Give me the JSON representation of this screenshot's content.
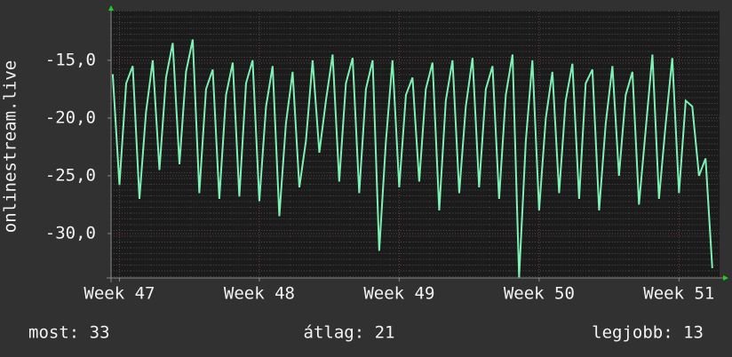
{
  "chart_data": {
    "type": "line",
    "ylabel": "onlinestream.live",
    "color": "#7ff0b4",
    "grid": true,
    "xlim": [
      46.94,
      51.29
    ],
    "ylim": [
      -33.85,
      -10.7
    ],
    "xticks": [
      {
        "value": 47,
        "label": "Week 47"
      },
      {
        "value": 48,
        "label": "Week 48"
      },
      {
        "value": 49,
        "label": "Week 49"
      },
      {
        "value": 50,
        "label": "Week 50"
      },
      {
        "value": 51,
        "label": "Week 51"
      }
    ],
    "yticks": [
      {
        "value": -30,
        "label": "-30,0"
      },
      {
        "value": -25,
        "label": "-25,0"
      },
      {
        "value": -20,
        "label": "-20,0"
      },
      {
        "value": -15,
        "label": "-15,0"
      }
    ],
    "x": [
      46.952,
      47.0,
      47.048,
      47.095,
      47.143,
      47.19,
      47.238,
      47.286,
      47.333,
      47.381,
      47.429,
      47.476,
      47.524,
      47.571,
      47.619,
      47.667,
      47.714,
      47.762,
      47.81,
      47.857,
      47.905,
      47.952,
      48.0,
      48.048,
      48.095,
      48.143,
      48.19,
      48.238,
      48.286,
      48.333,
      48.381,
      48.429,
      48.476,
      48.524,
      48.571,
      48.619,
      48.667,
      48.714,
      48.762,
      48.81,
      48.857,
      48.905,
      48.952,
      49.0,
      49.048,
      49.095,
      49.143,
      49.19,
      49.238,
      49.286,
      49.333,
      49.381,
      49.429,
      49.476,
      49.524,
      49.571,
      49.619,
      49.667,
      49.714,
      49.762,
      49.81,
      49.857,
      49.905,
      49.952,
      50.0,
      50.048,
      50.095,
      50.143,
      50.19,
      50.238,
      50.286,
      50.333,
      50.381,
      50.429,
      50.476,
      50.524,
      50.571,
      50.619,
      50.667,
      50.714,
      50.762,
      50.81,
      50.857,
      50.905,
      50.952,
      51.0,
      51.048,
      51.095,
      51.143,
      51.19,
      51.238
    ],
    "values": [
      -16.2,
      -25.8,
      -17.0,
      -15.5,
      -27.0,
      -19.5,
      -15.0,
      -24.5,
      -16.5,
      -13.5,
      -24.0,
      -16.0,
      -13.2,
      -26.5,
      -17.5,
      -15.8,
      -27.0,
      -18.0,
      -15.2,
      -26.8,
      -17.0,
      -15.0,
      -27.2,
      -19.0,
      -15.5,
      -28.5,
      -20.5,
      -16.0,
      -26.0,
      -22.0,
      -15.0,
      -23.0,
      -18.5,
      -14.5,
      -25.5,
      -17.0,
      -14.8,
      -26.5,
      -17.5,
      -15.0,
      -31.5,
      -22.0,
      -15.0,
      -26.0,
      -18.0,
      -16.5,
      -25.5,
      -17.5,
      -15.2,
      -28.0,
      -18.5,
      -15.0,
      -26.5,
      -19.0,
      -14.8,
      -26.0,
      -17.5,
      -15.5,
      -27.0,
      -18.0,
      -14.5,
      -33.8,
      -22.0,
      -15.0,
      -28.0,
      -20.0,
      -16.0,
      -26.5,
      -18.5,
      -15.3,
      -27.0,
      -17.0,
      -15.8,
      -28.0,
      -20.5,
      -15.5,
      -25.0,
      -18.0,
      -16.0,
      -27.5,
      -21.0,
      -14.5,
      -27.0,
      -20.5,
      -14.8,
      -26.5,
      -18.5,
      -19.0,
      -25.0,
      -23.5,
      -33.0
    ],
    "annotations": [
      "most: 33",
      "átlag: 21",
      "legjobb: 13"
    ]
  }
}
